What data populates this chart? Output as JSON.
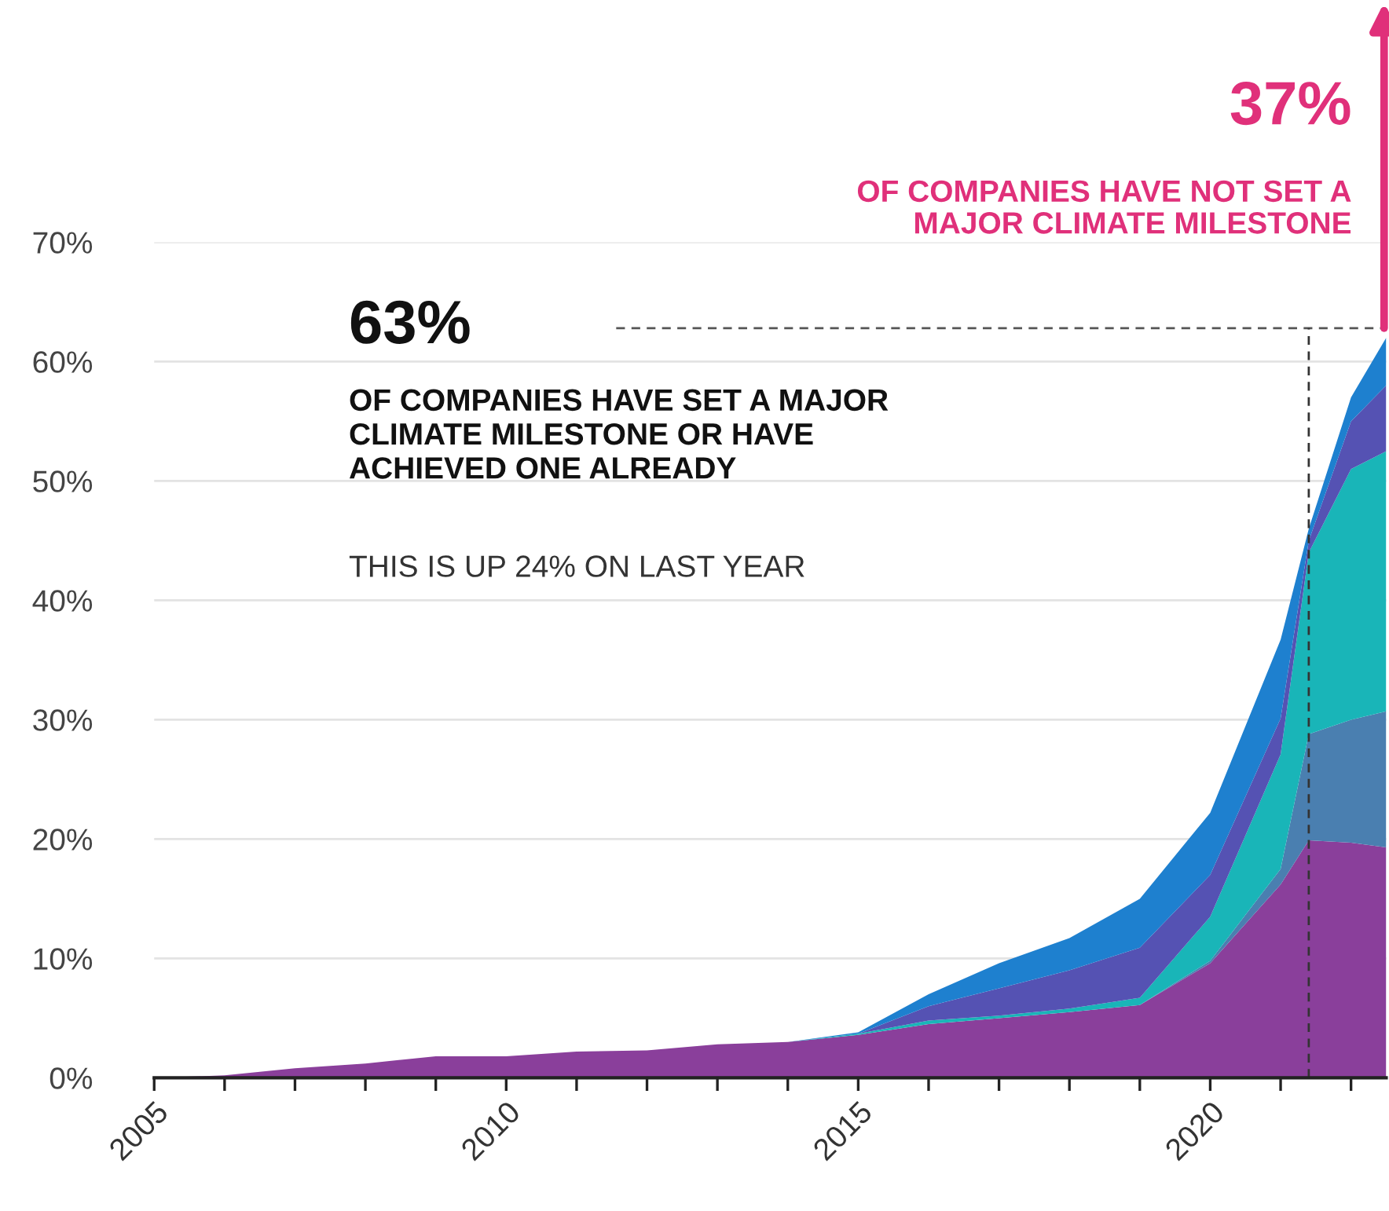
{
  "chart_data": {
    "type": "area",
    "stacked": true,
    "x": [
      2005,
      2006,
      2007,
      2008,
      2009,
      2010,
      2011,
      2012,
      2013,
      2014,
      2015,
      2016,
      2017,
      2018,
      2019,
      2020,
      2021,
      2021.4,
      2022,
      2022.5
    ],
    "series": [
      {
        "color": "#8a3f9b",
        "values": [
          0,
          0.2,
          0.8,
          1.2,
          1.8,
          1.8,
          2.2,
          2.3,
          2.8,
          3.0,
          3.6,
          4.5,
          5.0,
          5.5,
          6.1,
          9.6,
          16.2,
          19.9,
          19.7,
          19.3
        ]
      },
      {
        "color": "#4a7fb0",
        "values": [
          0,
          0,
          0,
          0,
          0,
          0,
          0,
          0,
          0,
          0,
          0,
          0,
          0,
          0,
          0,
          0.2,
          1.3,
          8.9,
          10.3,
          11.4
        ]
      },
      {
        "color": "#19b5b8",
        "values": [
          0,
          0,
          0,
          0,
          0,
          0,
          0,
          0,
          0,
          0,
          0.1,
          0.3,
          0.2,
          0.3,
          0.6,
          3.7,
          9.6,
          15.2,
          21.0,
          21.8
        ]
      },
      {
        "color": "#5552b3",
        "values": [
          0,
          0,
          0,
          0,
          0,
          0,
          0,
          0,
          0,
          0,
          0,
          1.2,
          2.3,
          3.2,
          4.2,
          3.5,
          3.0,
          1.0,
          4.0,
          5.5
        ]
      },
      {
        "color": "#1e80cf",
        "values": [
          0,
          0,
          0,
          0,
          0,
          0,
          0,
          0,
          0,
          0,
          0.1,
          1.0,
          2.1,
          2.7,
          4.1,
          5.2,
          6.6,
          1.0,
          2.0,
          4.0
        ]
      }
    ],
    "xlim": [
      2005,
      2022.5
    ],
    "xticks": [
      2005,
      {
        "value": 2006,
        "label": null
      },
      {
        "value": 2007,
        "label": null
      },
      {
        "value": 2008,
        "label": null
      },
      {
        "value": 2009,
        "label": null
      },
      2010,
      {
        "value": 2011,
        "label": null
      },
      {
        "value": 2012,
        "label": null
      },
      {
        "value": 2013,
        "label": null
      },
      {
        "value": 2014,
        "label": null
      },
      2015,
      {
        "value": 2016,
        "label": null
      },
      {
        "value": 2017,
        "label": null
      },
      {
        "value": 2018,
        "label": null
      },
      {
        "value": 2019,
        "label": null
      },
      2020,
      {
        "value": 2021,
        "label": null
      },
      {
        "value": 2022,
        "label": null
      }
    ],
    "ylim": [
      0,
      70
    ],
    "yticks": [
      {
        "value": 0,
        "label": "0%"
      },
      {
        "value": 10,
        "label": "10%"
      },
      {
        "value": 20,
        "label": "20%"
      },
      {
        "value": 30,
        "label": "30%"
      },
      {
        "value": 40,
        "label": "40%"
      },
      {
        "value": 50,
        "label": "50%"
      },
      {
        "value": 60,
        "label": "60%"
      },
      {
        "value": 70,
        "label": "70%"
      }
    ],
    "grid": "y",
    "ref_lines": [
      {
        "axis": "y",
        "value": 62.8,
        "color": "#555555",
        "line_style": "dashed"
      },
      {
        "axis": "x",
        "value": 2021.4,
        "color": "#333333",
        "line_style": "dashed"
      }
    ],
    "annotations": [
      "63%",
      "OF COMPANIES HAVE SET A MAJOR\nCLIMATE MILESTONE OR HAVE\nACHIEVED ONE ALREADY",
      "THIS IS UP 24% ON LAST YEAR",
      "37%",
      "OF COMPANIES HAVE NOT SET A\nMAJOR CLIMATE MILESTONE"
    ]
  }
}
